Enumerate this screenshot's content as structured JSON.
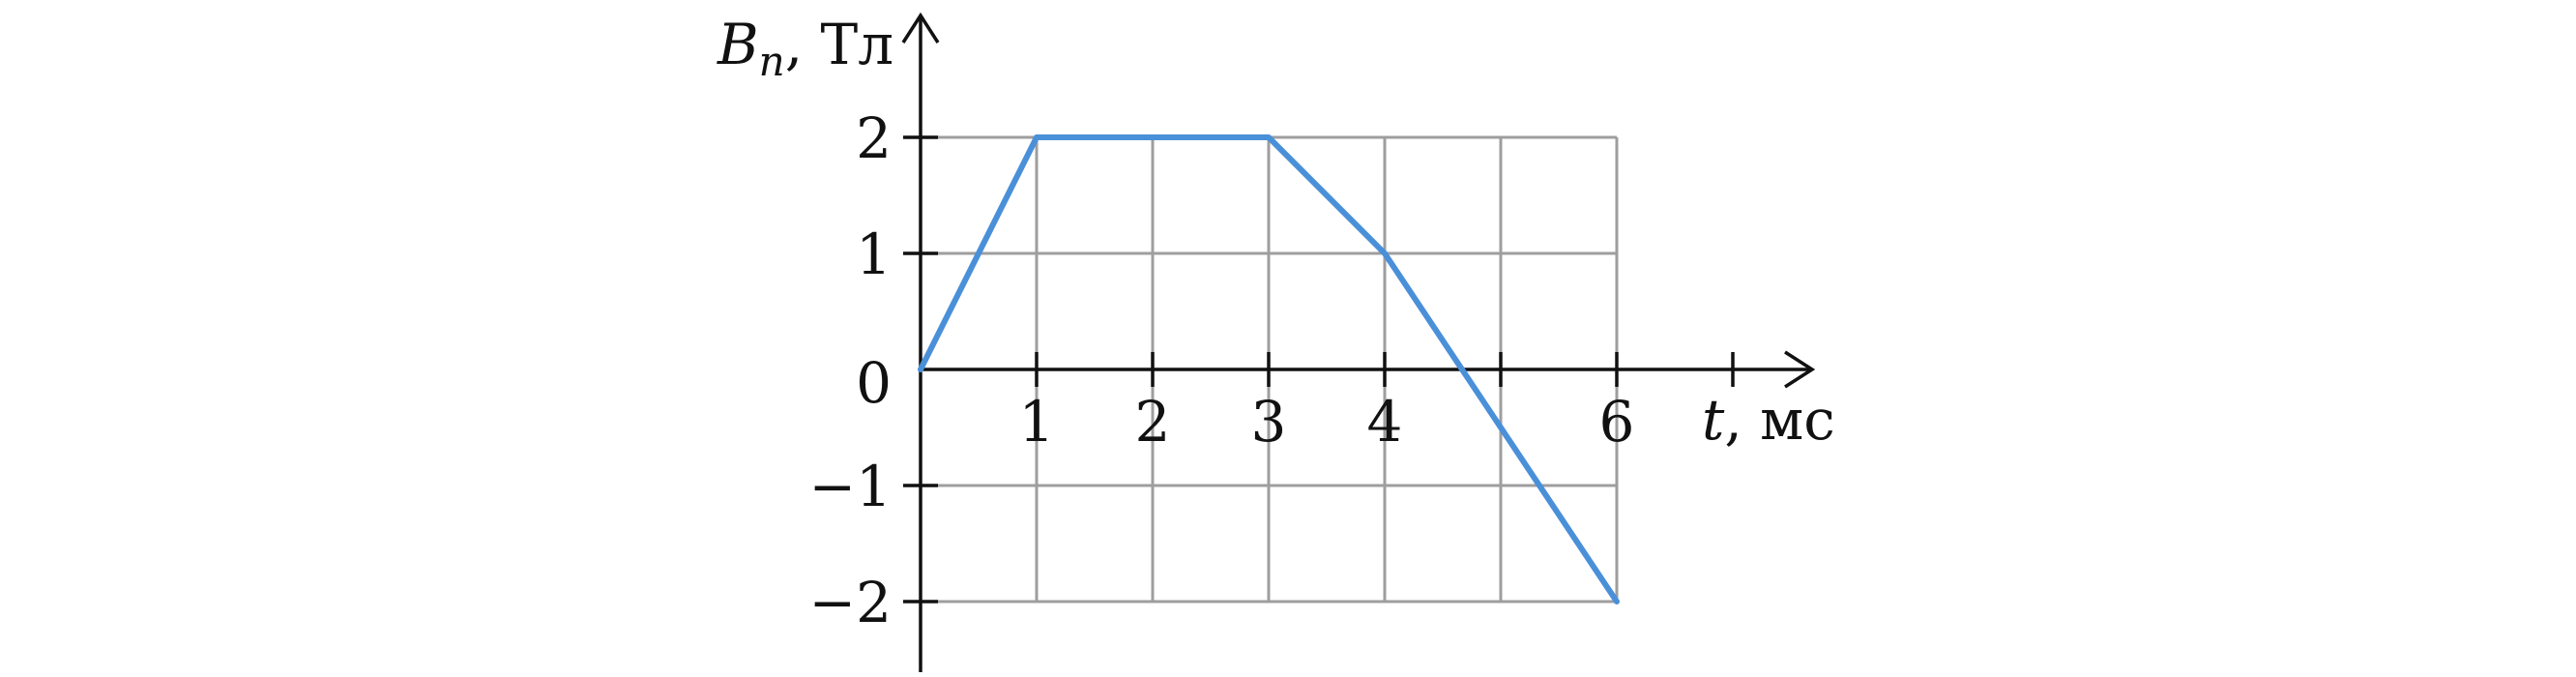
{
  "chart_data": {
    "type": "line",
    "x": [
      0,
      1,
      3,
      4,
      6
    ],
    "series": [
      {
        "values": [
          0,
          2,
          2,
          1,
          -2
        ]
      }
    ],
    "xlabel_var": "t",
    "xlabel_unit": ", мс",
    "ylabel_var": "B",
    "ylabel_sub": "n",
    "ylabel_unit": ", Тл",
    "x_tick_labels": [
      "1",
      "2",
      "3",
      "4",
      "6"
    ],
    "y_tick_labels": [
      "2",
      "1",
      "0",
      "−1",
      "−2"
    ],
    "xlim": [
      0,
      6
    ],
    "ylim": [
      -2,
      2
    ],
    "grid": true,
    "line_color": "#4a90d9"
  }
}
